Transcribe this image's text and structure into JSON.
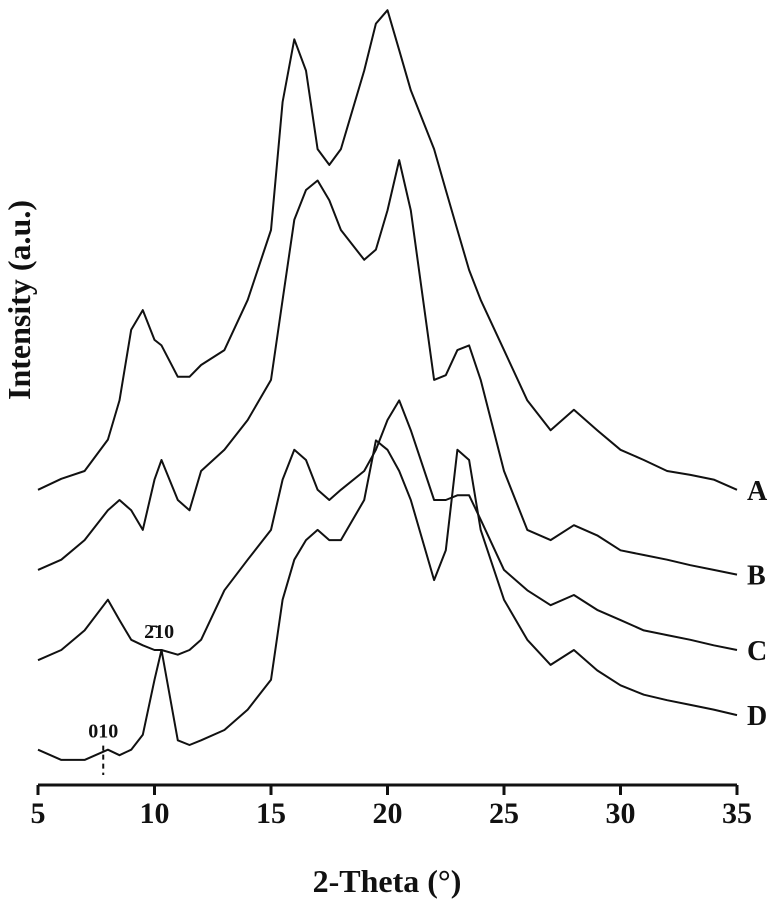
{
  "chart_data": {
    "type": "line",
    "x_label": "2-Theta (°)",
    "y_label": "Intensity (a.u.)",
    "x": [
      5,
      6,
      7,
      8,
      8.5,
      9,
      9.5,
      10,
      10.3,
      11,
      11.5,
      12,
      13,
      14,
      15,
      15.5,
      16,
      16.5,
      17,
      17.5,
      18,
      19,
      19.5,
      20,
      20.5,
      21,
      22,
      22.5,
      23,
      23.5,
      24,
      25,
      26,
      27,
      28,
      29,
      30,
      31,
      32,
      33,
      34,
      35
    ],
    "series": [
      {
        "name": "A",
        "color": "#111111",
        "values": [
          37.6,
          39,
          40,
          44,
          49,
          58,
          60.5,
          56.7,
          56,
          52,
          52,
          53.5,
          55.4,
          61.8,
          70.7,
          87,
          95,
          91,
          81,
          79,
          81,
          91,
          97,
          98.7,
          93.6,
          88.5,
          81,
          75.8,
          70.7,
          65.6,
          61.8,
          55.4,
          49,
          45.2,
          47.8,
          45.2,
          42.7,
          41.4,
          40,
          39.5,
          38.9,
          37.6
        ]
      },
      {
        "name": "B",
        "color": "#111111",
        "values": [
          27.4,
          28.7,
          31.2,
          35,
          36.3,
          35,
          32.5,
          38.9,
          41.4,
          36.3,
          35,
          40,
          42.7,
          46.5,
          51.6,
          61.8,
          72,
          75.8,
          77,
          74.5,
          70.7,
          66.9,
          68.2,
          73.2,
          79.6,
          73.2,
          51.6,
          52.2,
          55.4,
          56,
          51.6,
          40,
          32.5,
          31.2,
          33.1,
          31.8,
          29.9,
          29.3,
          28.7,
          28,
          27.4,
          26.8
        ]
      },
      {
        "name": "C",
        "color": "#111111",
        "values": [
          15.9,
          17.2,
          19.7,
          23.6,
          21,
          18.5,
          17.8,
          17.2,
          17.2,
          16.6,
          17.2,
          18.5,
          24.8,
          28.7,
          32.5,
          38.9,
          42.7,
          41.4,
          37.6,
          36.3,
          37.6,
          40,
          42.7,
          46.5,
          49,
          45.2,
          36.3,
          36.3,
          36.9,
          36.9,
          33.8,
          27.4,
          24.8,
          22.9,
          24.2,
          22.3,
          21,
          19.7,
          19.1,
          18.5,
          17.8,
          17.2
        ]
      },
      {
        "name": "D",
        "color": "#111111",
        "values": [
          4.5,
          3.2,
          3.2,
          4.5,
          3.8,
          4.5,
          6.4,
          13.4,
          17.2,
          5.7,
          5.1,
          5.7,
          7,
          9.6,
          13.4,
          23.6,
          28.7,
          31.2,
          32.5,
          31.2,
          31.2,
          36.3,
          43.9,
          42.7,
          40,
          36.3,
          26.1,
          29.9,
          42.7,
          41.4,
          32.5,
          23.6,
          18.5,
          15.3,
          17.2,
          14.6,
          12.7,
          11.5,
          10.8,
          10.2,
          9.6,
          8.9
        ]
      }
    ],
    "annotations": [
      {
        "text": "010",
        "x": 7.8
      },
      {
        "text": "2̄10",
        "x": 10.2
      }
    ],
    "xlim": [
      5,
      35
    ],
    "xticks": [
      5,
      10,
      15,
      20,
      25,
      30,
      35
    ],
    "ylim": [
      0,
      100
    ]
  }
}
